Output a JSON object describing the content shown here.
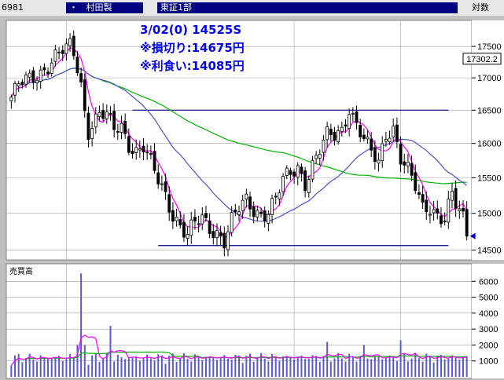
{
  "toolbar": {
    "code": "6981",
    "dot": "・",
    "name": "村田製",
    "market": "東証1部",
    "scale": "対数"
  },
  "annotation": {
    "line1": "3/02(0) 14525S",
    "line2": "※損切り:14675円",
    "line3": "※利食い:14085円"
  },
  "current_price_label": "17302.2",
  "volume_label": "売買高",
  "colors": {
    "up": "#ffffff",
    "down": "#000000",
    "ma_short": "#ff00ff",
    "ma_mid": "#5050c0",
    "ma_long": "#00b000",
    "volume_bar": "#5a5ad8",
    "hline": "#000080",
    "arrow": "#0000cc"
  },
  "chart_data": [
    {
      "type": "candlestick",
      "yscale": "log",
      "ylim": [
        14400,
        17900
      ],
      "yticks": [
        17500,
        17000,
        16500,
        16000,
        15500,
        15000,
        14500
      ],
      "current_price": 17302.2,
      "hlines": [
        {
          "y": 16500,
          "x_from_index": 33,
          "x_to_index": 119
        },
        {
          "y": 14560,
          "x_from_index": 40,
          "x_to_index": 119
        }
      ],
      "candles": [],
      "ma_short": [],
      "ma_mid": [],
      "ma_long": []
    },
    {
      "type": "bar",
      "title": "売買高",
      "ylim": [
        0,
        7000
      ],
      "yticks": [
        6000,
        5000,
        4000,
        3000,
        2000,
        1000
      ],
      "values": [],
      "ma_short": [],
      "ma_long": []
    }
  ]
}
